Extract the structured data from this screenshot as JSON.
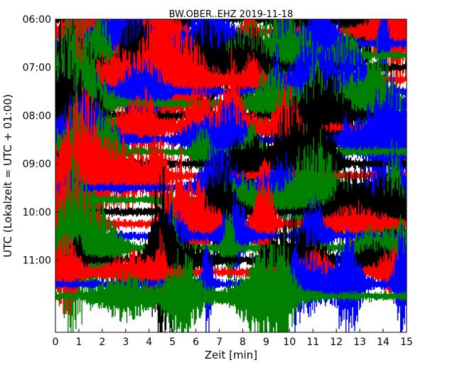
{
  "chart_data": {
    "type": "line",
    "title": "BW.OBER..EHZ 2019-11-18",
    "xlabel": "Zeit  [min]",
    "ylabel": "UTC (Lokalzeit = UTC + 01:00)",
    "xlim": [
      0,
      15
    ],
    "ylim_minutes_after_0600": [
      0,
      390
    ],
    "y_inverted": true,
    "x_ticks": [
      "0",
      "1",
      "2",
      "3",
      "4",
      "5",
      "6",
      "7",
      "8",
      "9",
      "10",
      "11",
      "12",
      "13",
      "14",
      "15"
    ],
    "y_ticks": [
      "06:00",
      "07:00",
      "08:00",
      "09:00",
      "10:00",
      "11:00"
    ],
    "trace_interval_minutes": 15,
    "trace_start_times": [
      "06:00",
      "06:15",
      "06:30",
      "06:45",
      "07:00",
      "07:15",
      "07:30",
      "07:45",
      "08:00",
      "08:15",
      "08:30",
      "08:45",
      "09:00",
      "09:15",
      "09:30",
      "09:45",
      "10:00",
      "10:15",
      "10:30",
      "10:45",
      "11:00",
      "11:15",
      "11:30",
      "11:45"
    ],
    "color_cycle": [
      "#000000",
      "#ff0000",
      "#0000ff",
      "#008000"
    ],
    "grid": false,
    "legend": "none"
  }
}
